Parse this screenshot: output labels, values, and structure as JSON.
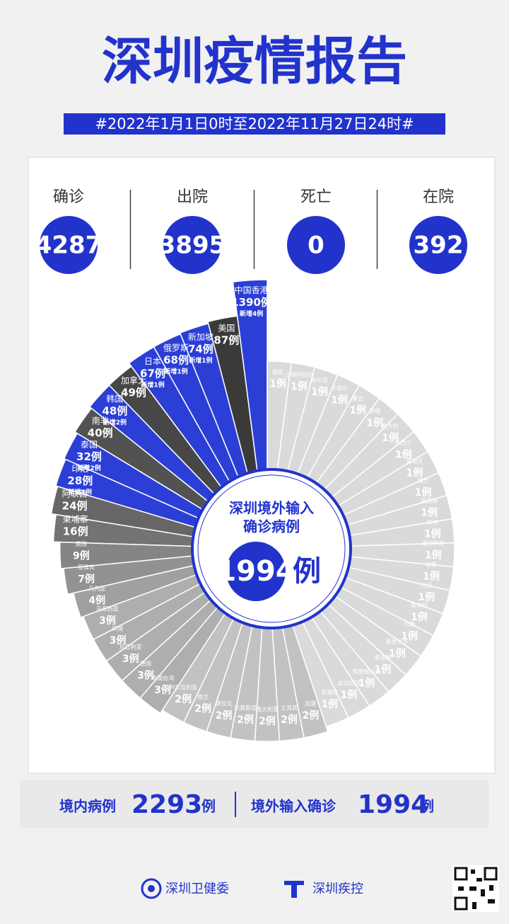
{
  "header": {
    "title": "深圳疫情报告",
    "subtitle": "#2022年1月1日0时至2022年11月27日24时#"
  },
  "stats": [
    {
      "label": "确诊",
      "value": 4287
    },
    {
      "label": "出院",
      "value": 3895
    },
    {
      "label": "死亡",
      "value": 0
    },
    {
      "label": "在院",
      "value": 392
    }
  ],
  "chart_data": {
    "type": "radial-bar",
    "radial_scale": "log",
    "categories": [
      "中国香港",
      "美国",
      "新加坡",
      "俄罗斯",
      "日本",
      "加拿大",
      "韩国",
      "南非",
      "泰国",
      "印尼",
      "阿联酋",
      "柬埔寨",
      "英国",
      "菲律宾",
      "几内亚",
      "马来西亚",
      "印度",
      "尼日利亚",
      "德国",
      "中国台湾",
      "阿尔及利亚",
      "荷兰",
      "伊拉克",
      "巴基斯坦",
      "澳大利亚",
      "土耳其",
      "加蓬",
      "安哥拉",
      "孟加拉国",
      "埃塞俄比亚",
      "摩洛哥",
      "斯里兰卡",
      "巴西",
      "奥地利",
      "约旦",
      "秘鲁",
      "塞拉利昂",
      "加纳",
      "墨西哥",
      "瑞士",
      "葡萄牙",
      "新西兰",
      "意大利",
      "伊朗",
      "蒙古",
      "卡塔尔",
      "肯尼亚",
      "沙特阿拉伯",
      "越南"
    ],
    "values": [
      1390,
      87,
      74,
      68,
      67,
      49,
      48,
      40,
      32,
      28,
      24,
      16,
      9,
      7,
      4,
      3,
      3,
      3,
      3,
      3,
      2,
      2,
      2,
      2,
      2,
      2,
      2,
      1,
      1,
      1,
      1,
      1,
      1,
      1,
      1,
      1,
      1,
      1,
      1,
      1,
      1,
      1,
      1,
      1,
      1,
      1,
      1,
      1,
      1
    ],
    "value_labels": [
      "1390例",
      "87例",
      "74例",
      "68例",
      "67例",
      "49例",
      "48例",
      "40例",
      "32例",
      "28例",
      "24例",
      "16例",
      "9例",
      "7例",
      "4例",
      "3例",
      "3例",
      "3例",
      "3例",
      "3例",
      "2例",
      "2例",
      "2例",
      "2例",
      "2例",
      "2例",
      "2例",
      "1例",
      "1例",
      "1例",
      "1例",
      "1例",
      "1例",
      "1例",
      "1例",
      "1例",
      "1例",
      "1例",
      "1例",
      "1例",
      "1例",
      "1例",
      "1例",
      "1例",
      "1例",
      "1例",
      "1例",
      "1例",
      "1例"
    ],
    "new_labels": [
      "新增4例",
      null,
      "新增1例",
      "新增1例",
      "新增1例",
      null,
      "新增2例",
      null,
      "新增2例",
      "新增1例",
      null,
      null,
      null,
      null,
      null,
      null,
      null,
      null,
      null,
      null,
      null,
      null,
      null,
      null,
      null,
      null,
      null,
      null,
      null,
      null,
      null,
      null,
      null,
      null,
      null,
      null,
      null,
      null,
      null,
      null,
      null,
      null,
      null,
      null,
      null,
      null,
      null,
      null,
      null
    ],
    "colors": [
      "#2b3fd6",
      "#3a3a3a",
      "#2b3fd6",
      "#2b3fd6",
      "#2b3fd6",
      "#474747",
      "#2b3fd6",
      "#525252",
      "#2b3fd6",
      "#2b3fd6",
      "#666666",
      "#737373",
      "#858585",
      "#929292",
      "#a0a0a0",
      "#aeaeae",
      "#aeaeae",
      "#aeaeae",
      "#aeaeae",
      "#aeaeae",
      "#c2c2c2",
      "#c2c2c2",
      "#c2c2c2",
      "#c2c2c2",
      "#c2c2c2",
      "#c2c2c2",
      "#c2c2c2",
      "#dadada",
      "#dadada",
      "#dadada",
      "#dadada",
      "#dadada",
      "#dadada",
      "#dadada",
      "#dadada",
      "#dadada",
      "#dadada",
      "#dadada",
      "#dadada",
      "#dadada",
      "#dadada",
      "#dadada",
      "#dadada",
      "#dadada",
      "#dadada",
      "#dadada",
      "#dadada",
      "#dadada",
      "#dadada"
    ],
    "center": {
      "line1": "深圳境外输入",
      "line2": "确诊病例",
      "value": 1994,
      "unit": "例"
    }
  },
  "totals": {
    "domestic_label": "境内病例",
    "domestic_value": 2293,
    "domestic_unit": "例",
    "imported_label": "境外输入确诊",
    "imported_value": 1994,
    "imported_unit": "例"
  },
  "footer": {
    "org1": "深圳卫健委",
    "org2": "深圳疾控"
  }
}
